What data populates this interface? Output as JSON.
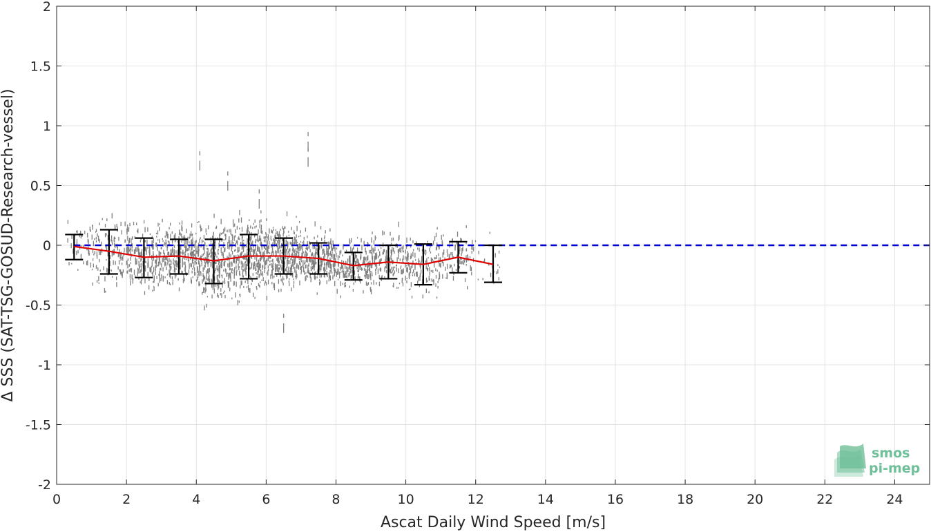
{
  "chart_data": {
    "type": "scatter",
    "xlabel": "Ascat Daily Wind Speed [m/s]",
    "ylabel": "Δ SSS (SAT-TSG-GOSUD-Research-vessel)",
    "xlim": [
      0,
      25
    ],
    "ylim": [
      -2,
      2
    ],
    "xticks": [
      "0",
      "2",
      "4",
      "6",
      "8",
      "10",
      "12",
      "14",
      "16",
      "18",
      "20",
      "22",
      "24"
    ],
    "yticks": [
      "-2",
      "-1.5",
      "-1",
      "-0.5",
      "0",
      "0.5",
      "1",
      "1.5",
      "2"
    ],
    "grid": true,
    "reference_line": {
      "y": 0,
      "style": "dashed",
      "color": "#0000cc"
    },
    "binned_stats": {
      "x": [
        0.5,
        1.5,
        2.5,
        3.5,
        4.5,
        5.5,
        6.5,
        7.5,
        8.5,
        9.5,
        10.5,
        11.5,
        12.5
      ],
      "mean": [
        -0.01,
        -0.05,
        -0.1,
        -0.09,
        -0.13,
        -0.09,
        -0.09,
        -0.11,
        -0.17,
        -0.14,
        -0.16,
        -0.1,
        -0.16
      ],
      "upper": [
        0.09,
        0.13,
        0.06,
        0.05,
        0.05,
        0.09,
        0.06,
        0.02,
        -0.06,
        0.0,
        0.01,
        0.03,
        0.0
      ],
      "lower": [
        -0.12,
        -0.24,
        -0.27,
        -0.24,
        -0.32,
        -0.28,
        -0.24,
        -0.24,
        -0.29,
        -0.28,
        -0.33,
        -0.23,
        -0.31
      ],
      "mean_color": "#e00000",
      "errorbar_color": "#000000"
    },
    "scatter": {
      "color": "#808080",
      "x_range": [
        0.3,
        12.8
      ],
      "typical_spread": [
        -0.55,
        0.3
      ],
      "outliers": [
        {
          "x": 4.1,
          "y": 0.77
        },
        {
          "x": 4.9,
          "y": 0.6
        },
        {
          "x": 7.2,
          "y": 0.93
        },
        {
          "x": 7.2,
          "y": 0.8
        },
        {
          "x": 6.5,
          "y": -0.59
        },
        {
          "x": 5.8,
          "y": 0.45
        }
      ]
    },
    "logo": {
      "line1": "smos",
      "line2": "pi-mep",
      "color": "#6fbf99"
    }
  }
}
